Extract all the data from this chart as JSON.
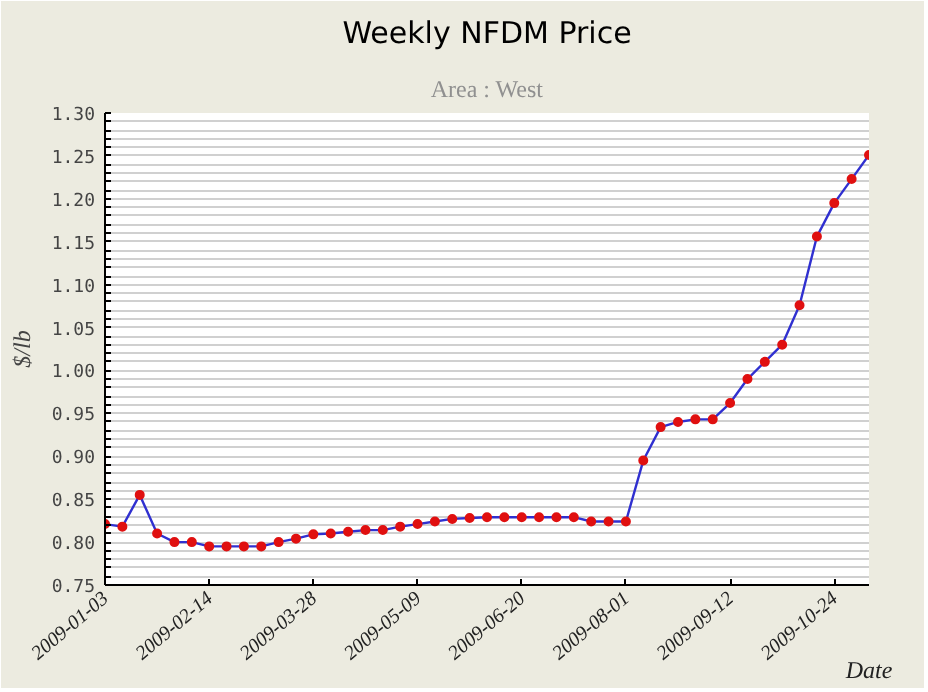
{
  "chart_data": {
    "type": "line",
    "title": "Weekly NFDM Price",
    "subtitle": "Area : West",
    "xlabel": "Date",
    "ylabel": "$/lb",
    "x": [
      "2009-01-03",
      "2009-01-10",
      "2009-01-17",
      "2009-01-24",
      "2009-01-31",
      "2009-02-07",
      "2009-02-14",
      "2009-02-21",
      "2009-02-28",
      "2009-03-07",
      "2009-03-14",
      "2009-03-21",
      "2009-03-28",
      "2009-04-04",
      "2009-04-11",
      "2009-04-18",
      "2009-04-25",
      "2009-05-02",
      "2009-05-09",
      "2009-05-16",
      "2009-05-23",
      "2009-05-30",
      "2009-06-06",
      "2009-06-13",
      "2009-06-20",
      "2009-06-27",
      "2009-07-04",
      "2009-07-11",
      "2009-07-18",
      "2009-07-25",
      "2009-08-01",
      "2009-08-08",
      "2009-08-15",
      "2009-08-22",
      "2009-08-29",
      "2009-09-05",
      "2009-09-12",
      "2009-09-19",
      "2009-09-26",
      "2009-10-03",
      "2009-10-10",
      "2009-10-17",
      "2009-10-24",
      "2009-10-31",
      "2009-11-07"
    ],
    "series": [
      {
        "color": "#3030d0",
        "values": [
          0.821,
          0.818,
          0.855,
          0.81,
          0.8,
          0.8,
          0.795,
          0.795,
          0.795,
          0.795,
          0.8,
          0.804,
          0.809,
          0.81,
          0.812,
          0.814,
          0.814,
          0.818,
          0.821,
          0.824,
          0.827,
          0.828,
          0.829,
          0.829,
          0.829,
          0.829,
          0.829,
          0.829,
          0.824,
          0.824,
          0.824,
          0.895,
          0.934,
          0.94,
          0.943,
          0.943,
          0.962,
          0.99,
          1.01,
          1.03,
          1.076,
          1.156,
          1.195,
          1.223,
          1.251
        ]
      },
      {
        "type": "scatter",
        "color": "#e01010",
        "marker": "circle",
        "values": [
          0.821,
          0.818,
          0.855,
          0.81,
          0.8,
          0.8,
          0.795,
          0.795,
          0.795,
          0.795,
          0.8,
          0.804,
          0.809,
          0.81,
          0.812,
          0.814,
          0.814,
          0.818,
          0.821,
          0.824,
          0.827,
          0.828,
          0.829,
          0.829,
          0.829,
          0.829,
          0.829,
          0.829,
          0.824,
          0.824,
          0.824,
          0.895,
          0.934,
          0.94,
          0.943,
          0.943,
          0.962,
          0.99,
          1.01,
          1.03,
          1.076,
          1.156,
          1.195,
          1.223,
          1.251
        ]
      }
    ],
    "xlim": [
      "2009-01-03",
      "2009-11-07"
    ],
    "xticks": [
      "2009-01-03",
      "2009-02-14",
      "2009-03-28",
      "2009-05-09",
      "2009-06-20",
      "2009-08-01",
      "2009-09-12",
      "2009-10-24"
    ],
    "ylim": [
      0.75,
      1.3
    ],
    "yticks": [
      0.75,
      {
        "value": 0.76,
        "label": null
      },
      {
        "value": 0.77,
        "label": null
      },
      {
        "value": 0.78,
        "label": null
      },
      {
        "value": 0.79,
        "label": null
      },
      {
        "value": 0.8,
        "label": "0.80"
      },
      {
        "value": 0.81,
        "label": null
      },
      {
        "value": 0.82,
        "label": null
      },
      {
        "value": 0.83,
        "label": null
      },
      {
        "value": 0.84,
        "label": null
      },
      0.85,
      {
        "value": 0.86,
        "label": null
      },
      {
        "value": 0.87,
        "label": null
      },
      {
        "value": 0.88,
        "label": null
      },
      {
        "value": 0.89,
        "label": null
      },
      {
        "value": 0.9,
        "label": "0.90"
      },
      {
        "value": 0.91,
        "label": null
      },
      {
        "value": 0.92,
        "label": null
      },
      {
        "value": 0.93,
        "label": null
      },
      {
        "value": 0.94,
        "label": null
      },
      0.95,
      {
        "value": 0.96,
        "label": null
      },
      {
        "value": 0.97,
        "label": null
      },
      {
        "value": 0.98,
        "label": null
      },
      {
        "value": 0.99,
        "label": null
      },
      {
        "value": 1.0,
        "label": "1.00"
      },
      {
        "value": 1.01,
        "label": null
      },
      {
        "value": 1.02,
        "label": null
      },
      {
        "value": 1.03,
        "label": null
      },
      {
        "value": 1.04,
        "label": null
      },
      1.05,
      {
        "value": 1.06,
        "label": null
      },
      {
        "value": 1.07,
        "label": null
      },
      {
        "value": 1.08,
        "label": null
      },
      {
        "value": 1.09,
        "label": null
      },
      {
        "value": 1.1,
        "label": "1.10"
      },
      {
        "value": 1.11,
        "label": null
      },
      {
        "value": 1.12,
        "label": null
      },
      {
        "value": 1.13,
        "label": null
      },
      {
        "value": 1.14,
        "label": null
      },
      1.15,
      {
        "value": 1.16,
        "label": null
      },
      {
        "value": 1.17,
        "label": null
      },
      {
        "value": 1.18,
        "label": null
      },
      {
        "value": 1.19,
        "label": null
      },
      {
        "value": 1.2,
        "label": "1.20"
      },
      {
        "value": 1.21,
        "label": null
      },
      {
        "value": 1.22,
        "label": null
      },
      {
        "value": 1.23,
        "label": null
      },
      {
        "value": 1.24,
        "label": null
      },
      1.25,
      {
        "value": 1.26,
        "label": null
      },
      {
        "value": 1.27,
        "label": null
      },
      {
        "value": 1.28,
        "label": null
      },
      {
        "value": 1.29,
        "label": null
      },
      {
        "value": 1.3,
        "label": "1.30"
      }
    ],
    "grid": "y"
  }
}
